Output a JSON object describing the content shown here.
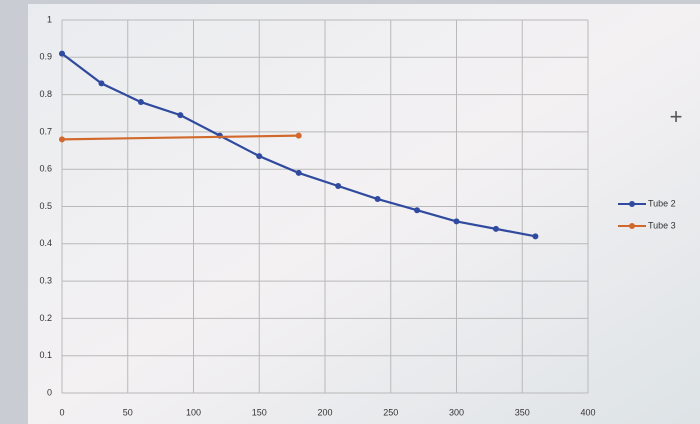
{
  "chart_data": {
    "type": "line",
    "series": [
      {
        "name": "Tube 2",
        "color": "#2f4a9e",
        "x": [
          0,
          30,
          60,
          90,
          120,
          150,
          180,
          210,
          240,
          270,
          300,
          330,
          360
        ],
        "values": [
          0.91,
          0.83,
          0.78,
          0.745,
          0.69,
          0.635,
          0.59,
          0.555,
          0.52,
          0.49,
          0.46,
          0.44,
          0.42
        ]
      },
      {
        "name": "Tube 3",
        "color": "#d2692c",
        "x": [
          0,
          180
        ],
        "values": [
          0.68,
          0.69
        ]
      }
    ],
    "xlim": [
      0,
      400
    ],
    "xticks": [
      0,
      50,
      100,
      150,
      200,
      250,
      300,
      350,
      400
    ],
    "ylim": [
      0,
      1
    ],
    "yticks": [
      0,
      0.1,
      0.2,
      0.3,
      0.4,
      0.5,
      0.6,
      0.7,
      0.8,
      0.9,
      1
    ],
    "grid": true,
    "legend": "right"
  }
}
